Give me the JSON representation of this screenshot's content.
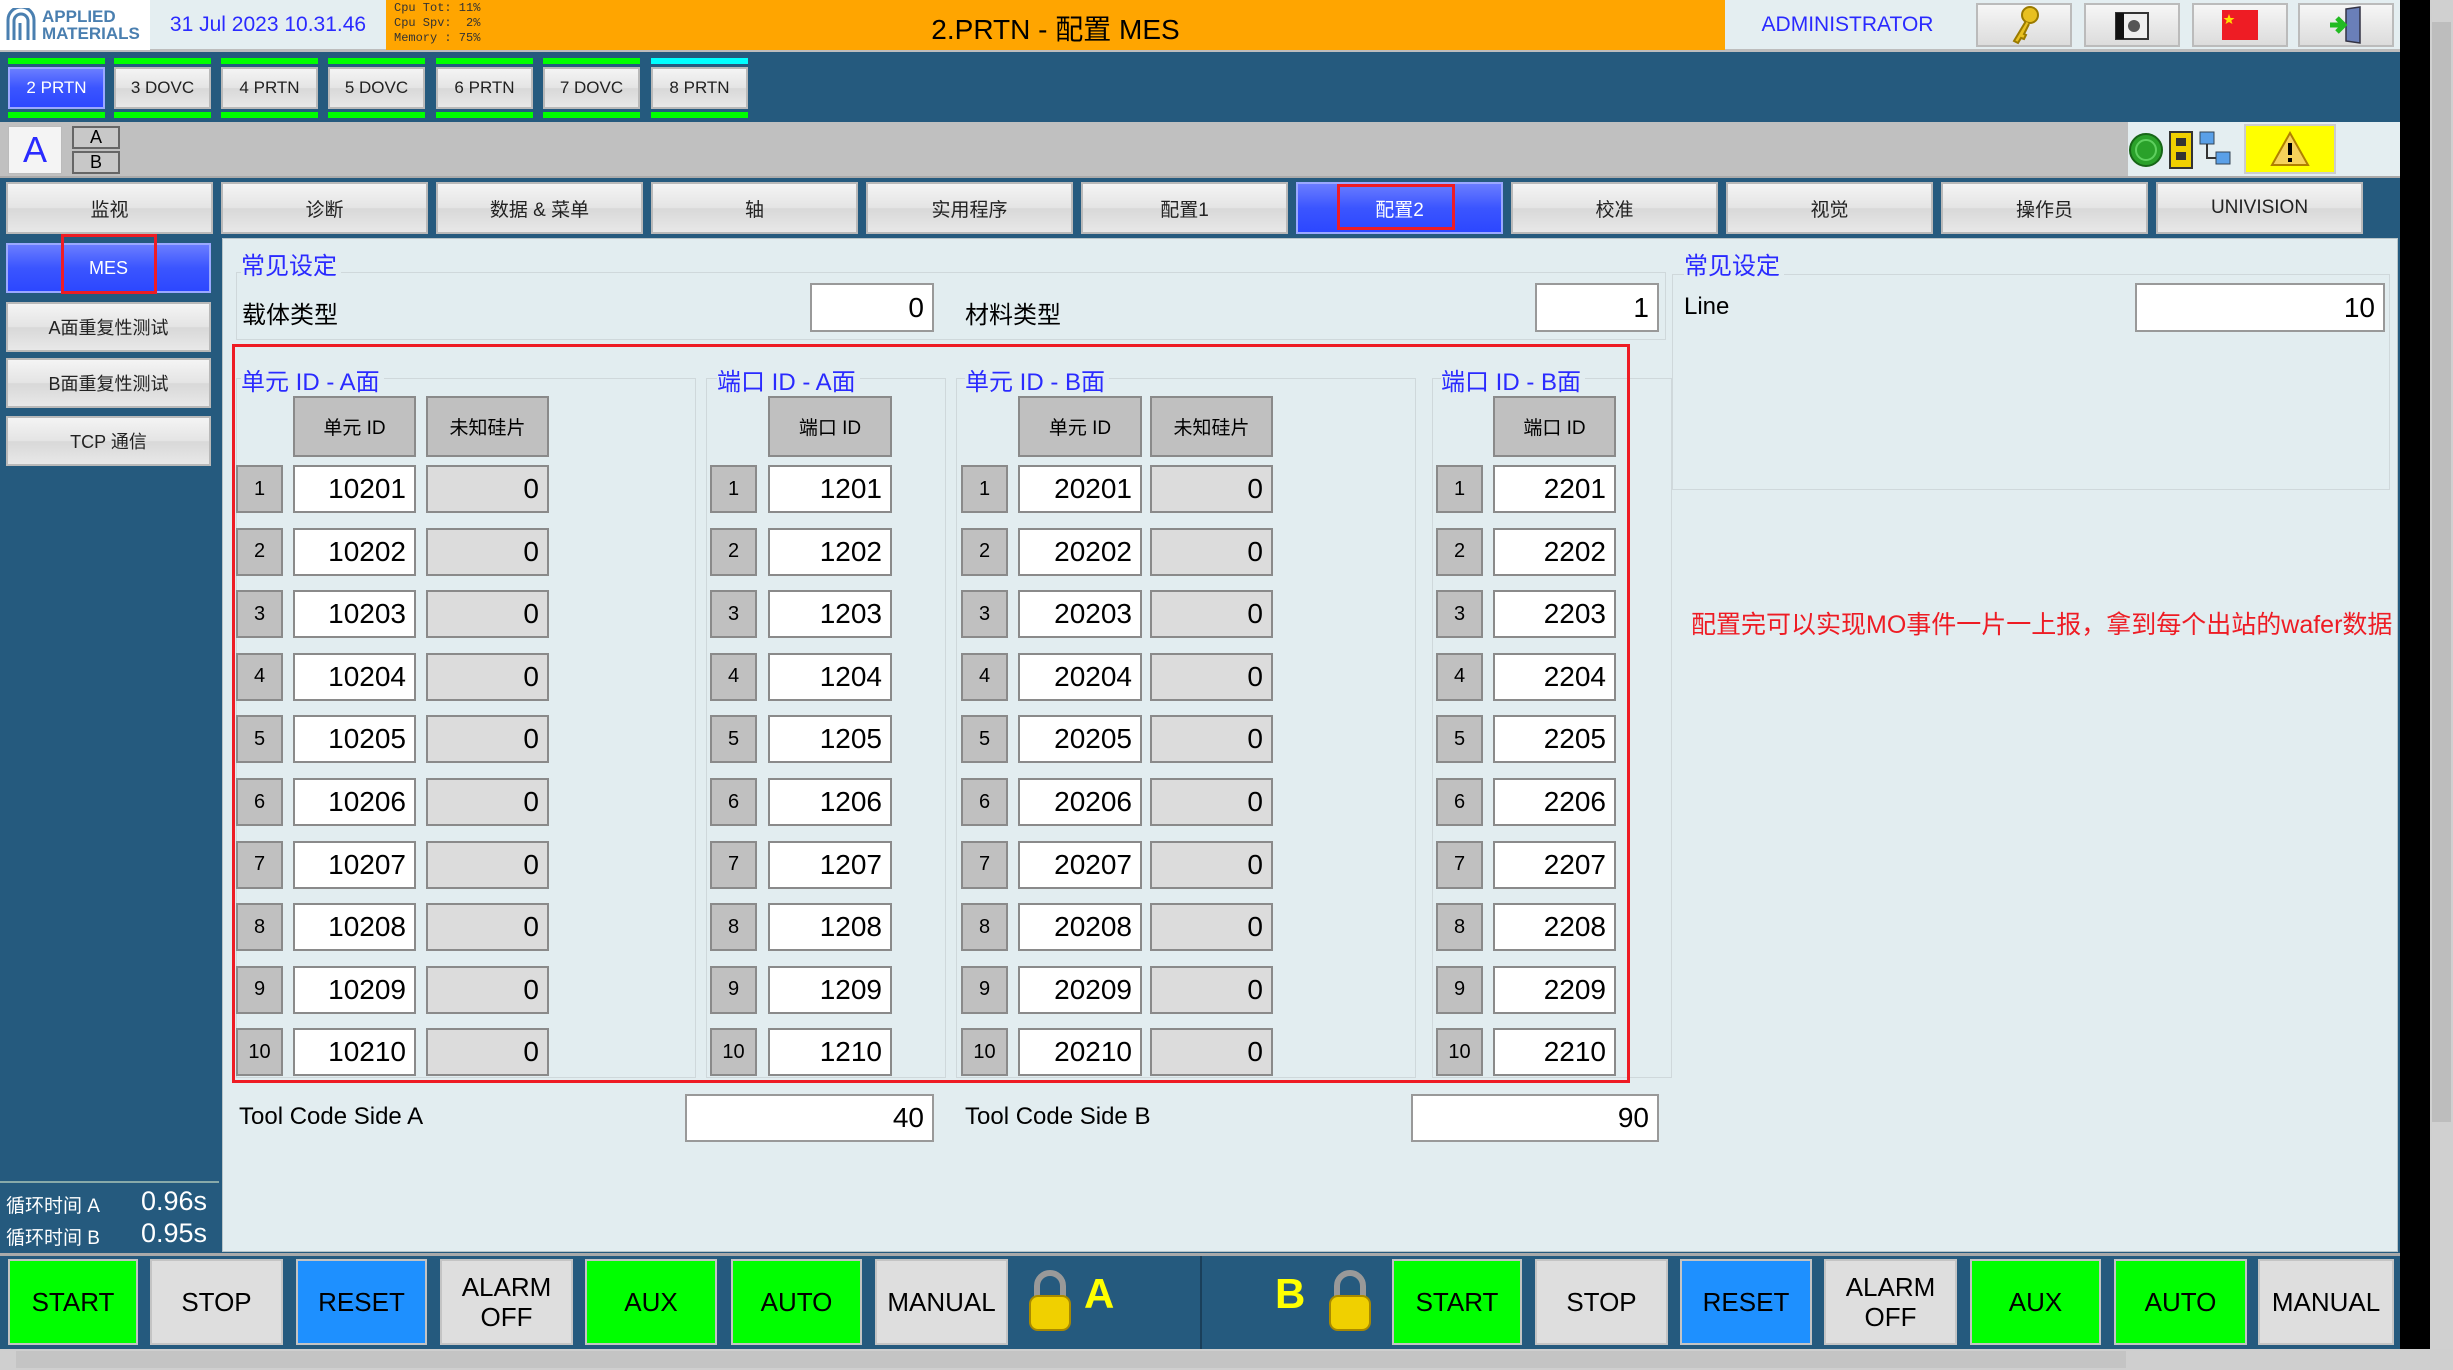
{
  "header": {
    "logo": "APPLIED MATERIALS",
    "datetime": "31 Jul 2023 10.31.46",
    "cpu_tot": "Cpu Tot: 11%",
    "cpu_spv": "Cpu Spv:  2%",
    "memory": "Memory : 75%",
    "title": "2.PRTN - 配置 MES",
    "user": "ADMINISTRATOR",
    "icons": [
      "key-icon",
      "camera-icon",
      "china-flag-icon",
      "exit-door-icon"
    ]
  },
  "machine_tabs": [
    {
      "label": "2 PRTN",
      "active": true,
      "status": "#00ff00"
    },
    {
      "label": "3 DOVC",
      "status": "#00ff00"
    },
    {
      "label": "4 PRTN",
      "status": "#00ff00"
    },
    {
      "label": "5 DOVC",
      "status": "#00ff00"
    },
    {
      "label": "6 PRTN",
      "status": "#00ff00"
    },
    {
      "label": "7 DOVC",
      "status": "#00ff00"
    },
    {
      "label": "8 PRTN",
      "status": "#00ffff"
    }
  ],
  "side_selector": {
    "current": "A",
    "options": [
      "A",
      "B"
    ]
  },
  "status_icons": [
    "green-status-icon",
    "safety-device-icon",
    "network-icon",
    "warning-icon"
  ],
  "nav_tabs": [
    {
      "label": "监视"
    },
    {
      "label": "诊断"
    },
    {
      "label": "数据 & 菜单"
    },
    {
      "label": "轴"
    },
    {
      "label": "实用程序"
    },
    {
      "label": "配置1"
    },
    {
      "label": "配置2",
      "active": true
    },
    {
      "label": "校准"
    },
    {
      "label": "视觉"
    },
    {
      "label": "操作员"
    },
    {
      "label": "UNIVISION"
    }
  ],
  "sidebar": {
    "items": [
      {
        "label": "MES",
        "active": true
      },
      {
        "label": "A面重复性测试"
      },
      {
        "label": "B面重复性测试"
      },
      {
        "label": "TCP 通信"
      }
    ],
    "cycle_a_label": "循环时间 A",
    "cycle_a": "0.96s",
    "cycle_b_label": "循环时间 B",
    "cycle_b": "0.95s"
  },
  "general": {
    "title": "常见设定",
    "carrier_type_label": "载体类型",
    "carrier_type": "0",
    "material_type_label": "材料类型",
    "material_type": "1"
  },
  "general_right": {
    "title": "常见设定",
    "line_label": "Line",
    "line": "10"
  },
  "sections": {
    "unit_a": {
      "title": "单元 ID - A面",
      "headers": [
        "单元 ID",
        "未知硅片"
      ],
      "rows": [
        [
          "10201",
          "0"
        ],
        [
          "10202",
          "0"
        ],
        [
          "10203",
          "0"
        ],
        [
          "10204",
          "0"
        ],
        [
          "10205",
          "0"
        ],
        [
          "10206",
          "0"
        ],
        [
          "10207",
          "0"
        ],
        [
          "10208",
          "0"
        ],
        [
          "10209",
          "0"
        ],
        [
          "10210",
          "0"
        ]
      ]
    },
    "port_a": {
      "title": "端口 ID - A面",
      "headers": [
        "端口 ID"
      ],
      "rows": [
        [
          "1201"
        ],
        [
          "1202"
        ],
        [
          "1203"
        ],
        [
          "1204"
        ],
        [
          "1205"
        ],
        [
          "1206"
        ],
        [
          "1207"
        ],
        [
          "1208"
        ],
        [
          "1209"
        ],
        [
          "1210"
        ]
      ]
    },
    "unit_b": {
      "title": "单元 ID - B面",
      "headers": [
        "单元 ID",
        "未知硅片"
      ],
      "rows": [
        [
          "20201",
          "0"
        ],
        [
          "20202",
          "0"
        ],
        [
          "20203",
          "0"
        ],
        [
          "20204",
          "0"
        ],
        [
          "20205",
          "0"
        ],
        [
          "20206",
          "0"
        ],
        [
          "20207",
          "0"
        ],
        [
          "20208",
          "0"
        ],
        [
          "20209",
          "0"
        ],
        [
          "20210",
          "0"
        ]
      ]
    },
    "port_b": {
      "title": "端口 ID - B面",
      "headers": [
        "端口 ID"
      ],
      "rows": [
        [
          "2201"
        ],
        [
          "2202"
        ],
        [
          "2203"
        ],
        [
          "2204"
        ],
        [
          "2205"
        ],
        [
          "2206"
        ],
        [
          "2207"
        ],
        [
          "2208"
        ],
        [
          "2209"
        ],
        [
          "2210"
        ]
      ]
    }
  },
  "row_indices": [
    "1",
    "2",
    "3",
    "4",
    "5",
    "6",
    "7",
    "8",
    "9",
    "10"
  ],
  "tool_code": {
    "a_label": "Tool Code Side A",
    "a": "40",
    "b_label": "Tool Code Side B",
    "b": "90"
  },
  "annotation": "配置完可以实现MO事件一片一上报，拿到每个出站的wafer数据",
  "controls": {
    "buttons": [
      {
        "label": "START",
        "color": "#00ff00"
      },
      {
        "label": "STOP",
        "color": "#dedede"
      },
      {
        "label": "RESET",
        "color": "#1e90ff"
      },
      {
        "label": "ALARM\nOFF",
        "color": "#dedede"
      },
      {
        "label": "AUX",
        "color": "#00ff00"
      },
      {
        "label": "AUTO",
        "color": "#00ff00"
      },
      {
        "label": "MANUAL",
        "color": "#dedede"
      }
    ],
    "side_a": "A",
    "side_b": "B"
  }
}
